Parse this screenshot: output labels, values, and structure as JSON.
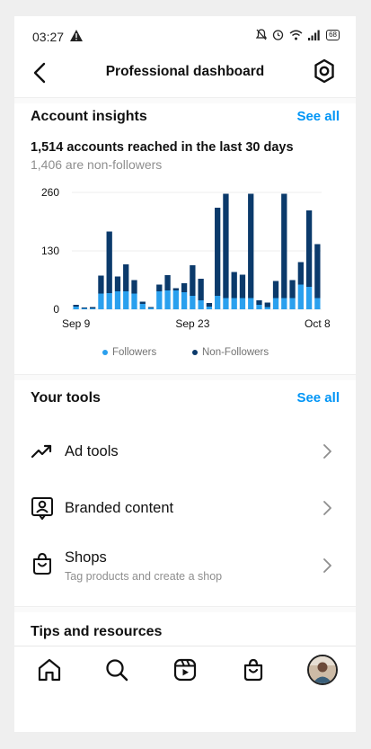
{
  "status_bar": {
    "time": "03:27",
    "battery": "68"
  },
  "header": {
    "title": "Professional dashboard"
  },
  "insights": {
    "title": "Account insights",
    "see_all": "See all",
    "reach_text": "1,514 accounts reached in the last 30 days",
    "non_followers_text": "1,406 are non-followers"
  },
  "chart_data": {
    "type": "bar",
    "stacked": true,
    "y_ticks": [
      "260",
      "130",
      "0"
    ],
    "ylim": [
      0,
      260
    ],
    "x_tick_labels": [
      {
        "label": "Sep 9",
        "index": 0
      },
      {
        "label": "Sep 23",
        "index": 14
      },
      {
        "label": "Oct 8",
        "index": 29
      }
    ],
    "categories": [
      "Sep 9",
      "Sep 10",
      "Sep 11",
      "Sep 12",
      "Sep 13",
      "Sep 14",
      "Sep 15",
      "Sep 16",
      "Sep 17",
      "Sep 18",
      "Sep 19",
      "Sep 20",
      "Sep 21",
      "Sep 22",
      "Sep 23",
      "Sep 24",
      "Sep 25",
      "Sep 26",
      "Sep 27",
      "Sep 28",
      "Sep 29",
      "Sep 30",
      "Oct 1",
      "Oct 2",
      "Oct 3",
      "Oct 4",
      "Oct 5",
      "Oct 6",
      "Oct 7",
      "Oct 8"
    ],
    "series": [
      {
        "name": "Followers",
        "color": "#2aa0ee",
        "values": [
          6,
          2,
          2,
          35,
          36,
          40,
          40,
          35,
          12,
          3,
          40,
          42,
          42,
          38,
          30,
          20,
          6,
          30,
          25,
          25,
          25,
          25,
          10,
          5,
          25,
          25,
          25,
          55,
          50,
          25
        ]
      },
      {
        "name": "Non-Followers",
        "color": "#0b3a6b",
        "values": [
          4,
          2,
          3,
          40,
          137,
          33,
          60,
          30,
          5,
          2,
          15,
          34,
          5,
          20,
          68,
          48,
          8,
          196,
          232,
          58,
          52,
          232,
          10,
          10,
          38,
          232,
          40,
          50,
          170,
          120
        ]
      }
    ],
    "legend": [
      {
        "label": "Followers",
        "color": "#2aa0ee"
      },
      {
        "label": "Non-Followers",
        "color": "#0b3a6b"
      }
    ],
    "grid": true,
    "legend_position": "bottom"
  },
  "tools": {
    "title": "Your tools",
    "see_all": "See all",
    "items": [
      {
        "label": "Ad tools",
        "icon": "trending-up-icon"
      },
      {
        "label": "Branded content",
        "icon": "branded-content-icon"
      },
      {
        "label": "Shops",
        "subtitle": "Tag products and create a shop",
        "icon": "shopping-bag-icon"
      }
    ]
  },
  "tips": {
    "title": "Tips and resources"
  },
  "nav": {
    "items": [
      "home-icon",
      "search-icon",
      "reels-icon",
      "shop-icon",
      "profile-avatar"
    ]
  }
}
